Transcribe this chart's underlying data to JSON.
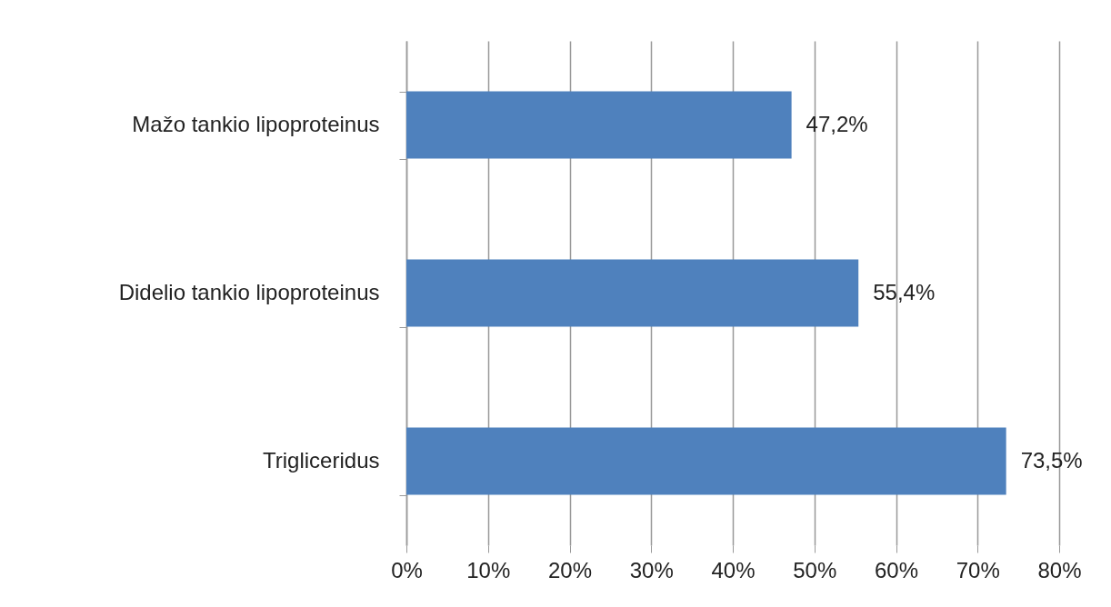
{
  "chart_data": {
    "type": "bar",
    "orientation": "horizontal",
    "categories": [
      "Mažo tankio lipoproteinus",
      "Didelio tankio lipoproteinus",
      "Trigliceridus"
    ],
    "values": [
      47.2,
      55.4,
      73.5
    ],
    "value_labels": [
      "47,2%",
      "55,4%",
      "73,5%"
    ],
    "color": "#4f81bd",
    "xlim": [
      0,
      80
    ],
    "xticks": [
      {
        "value": 0,
        "label": "0%"
      },
      {
        "value": 10,
        "label": "10%"
      },
      {
        "value": 20,
        "label": "20%"
      },
      {
        "value": 30,
        "label": "30%"
      },
      {
        "value": 40,
        "label": "40%"
      },
      {
        "value": 50,
        "label": "50%"
      },
      {
        "value": 60,
        "label": "60%"
      },
      {
        "value": 70,
        "label": "70%"
      },
      {
        "value": 80,
        "label": "80%"
      }
    ],
    "grid": "x"
  }
}
